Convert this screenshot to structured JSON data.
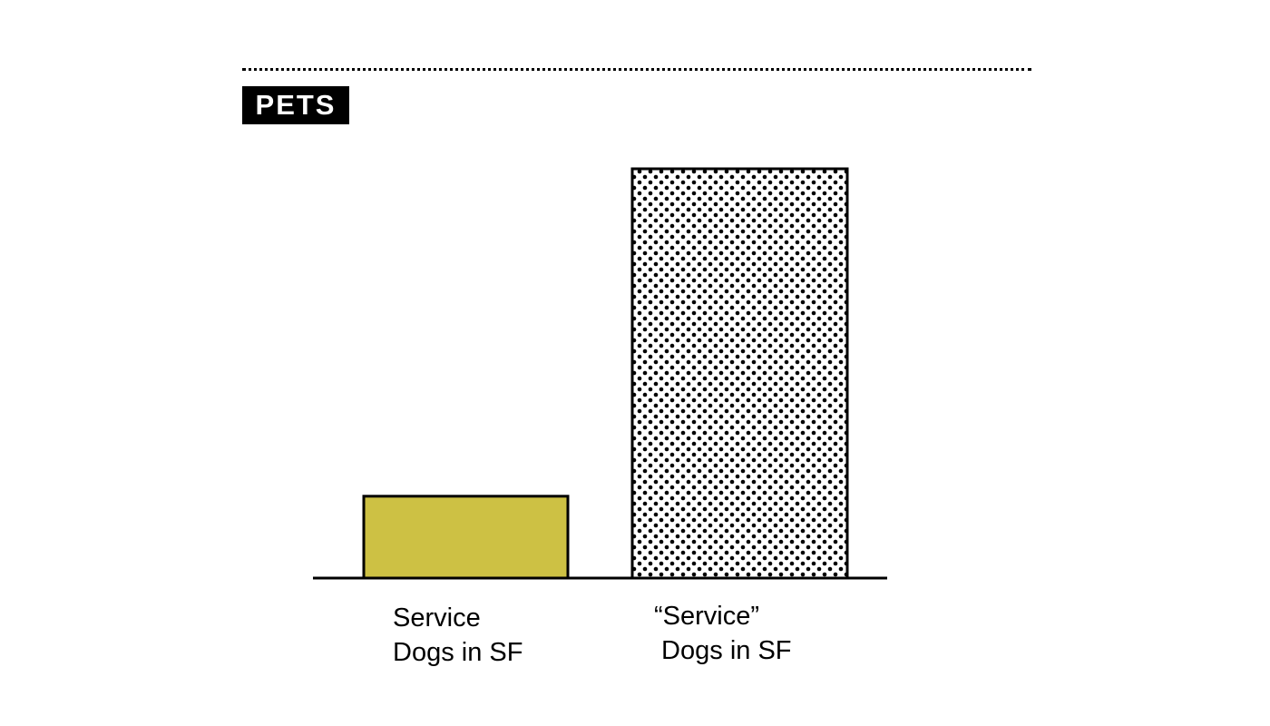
{
  "section_tag": "PETS",
  "chart_data": {
    "type": "bar",
    "categories": [
      "Service\nDogs in SF",
      "“Service”\n Dogs in SF"
    ],
    "values": [
      20,
      100
    ],
    "fills": [
      "#cdc144",
      "dots"
    ],
    "bar_fill_color": "#cdc144",
    "pattern_color": "#000000",
    "ylim": [
      0,
      100
    ],
    "title": "",
    "xlabel": "",
    "ylabel": "",
    "grid": false,
    "legend": "none"
  }
}
